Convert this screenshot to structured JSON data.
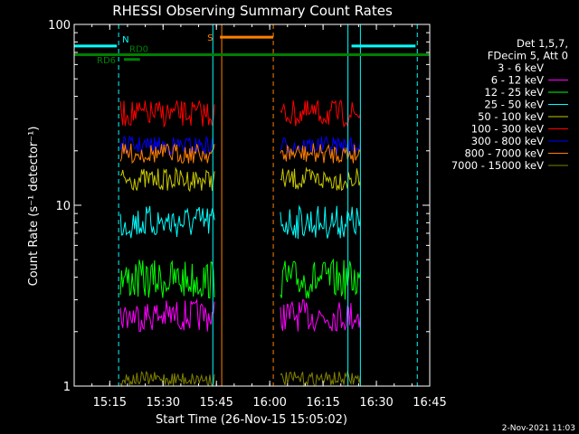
{
  "chart_data": {
    "type": "line",
    "title": "RHESSI Observing Summary Count Rates",
    "xlabel": "Start Time (26-Nov-15 15:05:02)",
    "ylabel": "Count Rate (s⁻¹ detector⁻¹)",
    "yscale": "log",
    "ylim": [
      1,
      100
    ],
    "xlim_minutes": [
      0,
      100
    ],
    "x_ticks": [
      "15:15",
      "15:30",
      "15:45",
      "16:00",
      "16:15",
      "16:30",
      "16:45"
    ],
    "x_tick_minutes": [
      10,
      25,
      40,
      55,
      70,
      85,
      100
    ],
    "y_ticks": [
      "1",
      "10",
      "100"
    ],
    "y_tick_values": [
      1,
      10,
      100
    ],
    "grid": false,
    "legend_position": "right",
    "legend_header": [
      "Det 1,5,7,",
      "FDecim 5, Att 0"
    ],
    "intervals": [
      [
        13,
        39.5
      ],
      [
        58,
        80.5
      ]
    ],
    "series": [
      {
        "name": "3 - 6 keV",
        "color": "#000000",
        "low": 4.0,
        "high": 6.0
      },
      {
        "name": "6 - 12 keV",
        "color": "#ff00ff",
        "low": 2.0,
        "high": 3.0
      },
      {
        "name": "12 - 25 keV",
        "color": "#00ff00",
        "low": 3.0,
        "high": 5.0
      },
      {
        "name": "25 - 50 keV",
        "color": "#00ffff",
        "low": 6.5,
        "high": 10.0
      },
      {
        "name": "50 - 100 keV",
        "color": "#c8c800",
        "low": 12.0,
        "high": 16.0
      },
      {
        "name": "100 - 300 keV",
        "color": "#ff0000",
        "low": 27.0,
        "high": 38.0
      },
      {
        "name": "300 - 800 keV",
        "color": "#0000ff",
        "low": 19.0,
        "high": 24.0
      },
      {
        "name": "800 - 7000 keV",
        "color": "#ff8000",
        "low": 17.0,
        "high": 22.0
      },
      {
        "name": "7000 - 15000 keV",
        "color": "#808000",
        "low": 1.0,
        "high": 1.2
      }
    ],
    "annotations": {
      "night_label": "N",
      "saa_label": "S",
      "rd0_label": "RD0",
      "rd6_label": "RD6",
      "night_bars": [
        [
          0,
          12
        ],
        [
          78,
          96
        ]
      ],
      "night_level": 76,
      "night_color": "#00ffff",
      "saa_bar": [
        41,
        56
      ],
      "saa_level": 85,
      "saa_color": "#ff8000",
      "rd0_bar": [
        0,
        100
      ],
      "rd0_level": 68,
      "rd6_bar": [
        14,
        18.5
      ],
      "rd6_level": 64,
      "rd_color": "#008000",
      "vlines_solid_cyan": [
        0,
        39,
        77,
        80.5
      ],
      "vlines_dashed_cyan": [
        12.5,
        96.5
      ],
      "vline_solid_orange": 41.5,
      "vline_dashed_orange": 56
    },
    "footer": "2-Nov-2021 11:03"
  }
}
